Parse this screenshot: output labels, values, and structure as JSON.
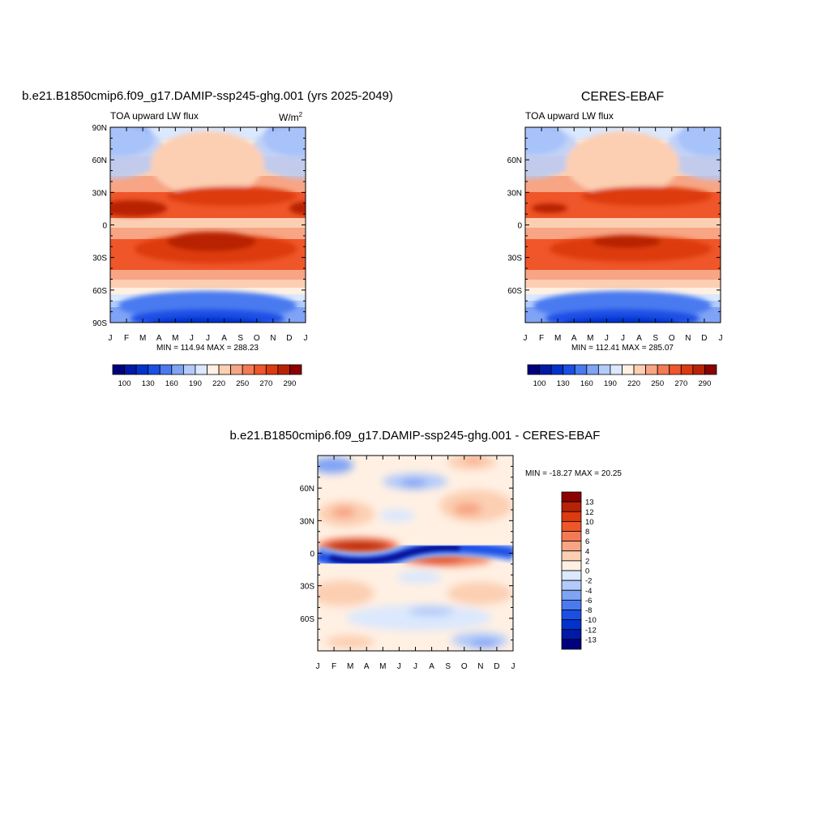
{
  "chart_data": [
    {
      "id": "model",
      "type": "heatmap",
      "title": "b.e21.B1850cmip6.f09_g17.DAMIP-ssp245-ghg.001 (yrs 2025-2049)",
      "subtitle_left": "TOA upward LW flux",
      "units": "W/m",
      "units_sup": "2",
      "x_tick_labels": [
        "J",
        "F",
        "M",
        "A",
        "M",
        "J",
        "J",
        "A",
        "S",
        "O",
        "N",
        "D",
        "J"
      ],
      "y_ticks": [
        90,
        60,
        30,
        0,
        -30,
        -60,
        -90
      ],
      "y_tick_labels": [
        "90N",
        "60N",
        "30N",
        "0",
        "30S",
        "60S",
        "90S"
      ],
      "ylim": [
        -90,
        90
      ],
      "stats": "MIN = 114.94 MAX = 288.23",
      "min": 114.94,
      "max": 288.23
    },
    {
      "id": "obs",
      "type": "heatmap",
      "title": "CERES-EBAF",
      "subtitle_left": "TOA upward LW flux",
      "x_tick_labels": [
        "J",
        "F",
        "M",
        "A",
        "M",
        "J",
        "J",
        "A",
        "S",
        "O",
        "N",
        "D",
        "J"
      ],
      "y_ticks": [
        60,
        30,
        0,
        -30,
        -60
      ],
      "y_tick_labels": [
        "60N",
        "30N",
        "0",
        "30S",
        "60S"
      ],
      "ylim": [
        -90,
        90
      ],
      "stats": "MIN = 112.41 MAX = 285.07",
      "min": 112.41,
      "max": 285.07
    },
    {
      "id": "diff",
      "type": "heatmap",
      "title": "b.e21.B1850cmip6.f09_g17.DAMIP-ssp245-ghg.001 - CERES-EBAF",
      "x_tick_labels": [
        "J",
        "F",
        "M",
        "A",
        "M",
        "J",
        "J",
        "A",
        "S",
        "O",
        "N",
        "D",
        "J"
      ],
      "y_ticks": [
        60,
        30,
        0,
        -30,
        -60
      ],
      "y_tick_labels": [
        "60N",
        "30N",
        "0",
        "30S",
        "60S"
      ],
      "ylim": [
        -90,
        90
      ],
      "stats": "MIN = -18.27 MAX =  20.25",
      "min": -18.27,
      "max": 20.25
    }
  ],
  "colorbar_main": {
    "colors": [
      "#00007f",
      "#0019a8",
      "#0033cc",
      "#1a4fe6",
      "#4a7af0",
      "#7fa3f5",
      "#b3cbfa",
      "#dbe8fd",
      "#fff0e3",
      "#fccfb2",
      "#f7a584",
      "#f47a55",
      "#ef5629",
      "#dd3a10",
      "#b82306",
      "#8b0000"
    ],
    "labels": [
      "100",
      "130",
      "160",
      "190",
      "220",
      "250",
      "270",
      "290"
    ]
  },
  "colorbar_diff": {
    "colors": [
      "#8b0000",
      "#b82306",
      "#dd3a10",
      "#ef5629",
      "#f47a55",
      "#f7a584",
      "#fccfb2",
      "#fff0e3",
      "#dbe8fd",
      "#b3cbfa",
      "#7fa3f5",
      "#4a7af0",
      "#1a4fe6",
      "#0033cc",
      "#0019a8",
      "#00007f"
    ],
    "labels": [
      "13",
      "12",
      "10",
      "8",
      "6",
      "4",
      "2",
      "0",
      "-2",
      "-4",
      "-6",
      "-8",
      "-10",
      "-12",
      "-13"
    ]
  }
}
